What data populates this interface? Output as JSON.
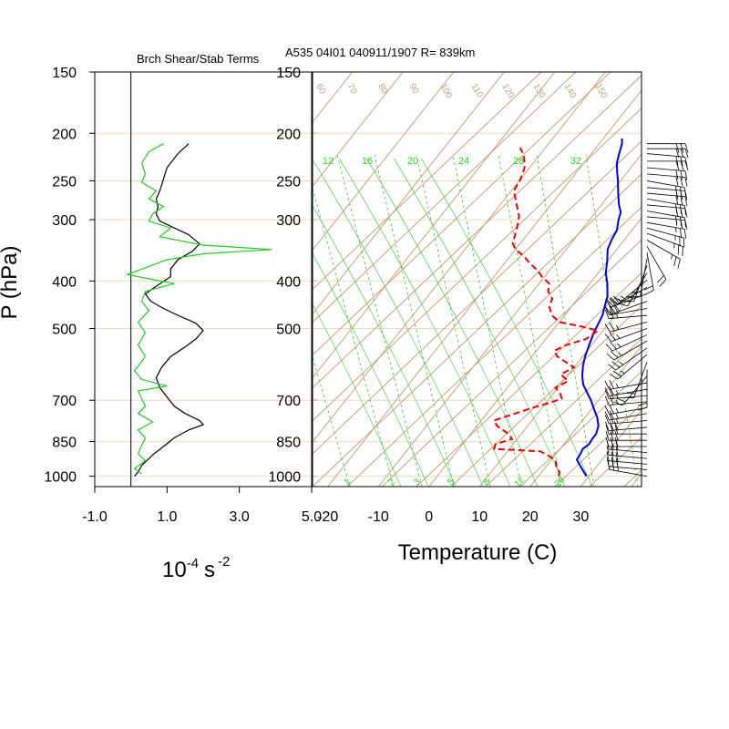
{
  "titles": {
    "left_panel": "Brch Shear/Stab Terms",
    "main": "A535 04I01 040911/1907 R= 839km"
  },
  "colors": {
    "skew_lines": "#c8a27c",
    "mixing_ratio": "#33cc33",
    "temperature": "#0000dd",
    "dewpoint": "#ee0000",
    "shear_term": "#000000",
    "stab_term": "#22cc22"
  },
  "chart_data": [
    {
      "type": "line",
      "panel": "left",
      "title": "Brch Shear/Stab Terms",
      "ylabel": "P (hPa)",
      "xlabel_base": "10",
      "xlabel_exp": "-4",
      "xlabel_unit": "s",
      "xlabel_unit_exp": "-2",
      "y_scale": "log-reversed",
      "ylim": [
        1000,
        150
      ],
      "xlim": [
        -1.0,
        5.0
      ],
      "x_ticks": [
        "-1.0",
        "1.0",
        "3.0",
        "5.0"
      ],
      "x_tick_values": [
        -1.0,
        1.0,
        3.0,
        5.0
      ],
      "p_ticks": [
        150,
        200,
        250,
        300,
        400,
        500,
        700,
        850,
        1000
      ],
      "series": [
        {
          "key": "black",
          "points": [
            [
              1.6,
              210
            ],
            [
              1.3,
              220
            ],
            [
              1.0,
              235
            ],
            [
              0.9,
              248
            ],
            [
              0.8,
              262
            ],
            [
              0.7,
              272
            ],
            [
              0.75,
              282
            ],
            [
              0.7,
              292
            ],
            [
              0.8,
              302
            ],
            [
              1.2,
              312
            ],
            [
              1.6,
              322
            ],
            [
              1.9,
              336
            ],
            [
              1.7,
              348
            ],
            [
              1.3,
              362
            ],
            [
              1.1,
              378
            ],
            [
              1.1,
              392
            ],
            [
              0.7,
              410
            ],
            [
              0.4,
              425
            ],
            [
              0.55,
              440
            ],
            [
              0.9,
              455
            ],
            [
              1.3,
              470
            ],
            [
              1.8,
              488
            ],
            [
              2.0,
              505
            ],
            [
              1.8,
              525
            ],
            [
              1.5,
              545
            ],
            [
              1.1,
              570
            ],
            [
              0.85,
              600
            ],
            [
              0.7,
              630
            ],
            [
              0.8,
              660
            ],
            [
              1.0,
              690
            ],
            [
              1.2,
              720
            ],
            [
              1.5,
              745
            ],
            [
              1.9,
              770
            ],
            [
              2.0,
              785
            ],
            [
              1.6,
              805
            ],
            [
              1.2,
              835
            ],
            [
              0.9,
              870
            ],
            [
              0.6,
              905
            ],
            [
              0.3,
              950
            ],
            [
              0.2,
              980
            ],
            [
              0.1,
              1000
            ]
          ]
        },
        {
          "key": "green",
          "points": [
            [
              0.9,
              210
            ],
            [
              0.5,
              218
            ],
            [
              0.3,
              230
            ],
            [
              0.4,
              242
            ],
            [
              0.3,
              252
            ],
            [
              0.7,
              262
            ],
            [
              0.5,
              272
            ],
            [
              0.9,
              282
            ],
            [
              0.6,
              292
            ],
            [
              0.5,
              302
            ],
            [
              1.1,
              312
            ],
            [
              0.8,
              325
            ],
            [
              2.0,
              338
            ],
            [
              3.9,
              345
            ],
            [
              2.0,
              352
            ],
            [
              1.0,
              362
            ],
            [
              0.4,
              376
            ],
            [
              -0.1,
              388
            ],
            [
              0.5,
              396
            ],
            [
              1.2,
              405
            ],
            [
              0.4,
              420
            ],
            [
              0.3,
              440
            ],
            [
              0.5,
              460
            ],
            [
              0.2,
              485
            ],
            [
              0.4,
              510
            ],
            [
              0.2,
              540
            ],
            [
              0.4,
              570
            ],
            [
              0.1,
              610
            ],
            [
              0.3,
              635
            ],
            [
              1.0,
              655
            ],
            [
              0.2,
              670
            ],
            [
              0.3,
              695
            ],
            [
              0.4,
              720
            ],
            [
              0.2,
              745
            ],
            [
              0.6,
              775
            ],
            [
              0.2,
              805
            ],
            [
              0.4,
              835
            ],
            [
              0.3,
              865
            ],
            [
              0.2,
              900
            ],
            [
              0.4,
              930
            ],
            [
              0.1,
              965
            ],
            [
              0.3,
              990
            ]
          ]
        }
      ]
    },
    {
      "type": "line",
      "panel": "skew-t",
      "title": "A535 04I01 040911/1907 R= 839km",
      "xlabel": "Temperature (C)",
      "y_scale": "log-reversed",
      "ylim": [
        1000,
        150
      ],
      "xlim": [
        -23,
        42
      ],
      "x_ticks": [
        "-20",
        "-10",
        "0",
        "10",
        "20",
        "30"
      ],
      "x_tick_values": [
        -20,
        -10,
        0,
        10,
        20,
        30
      ],
      "p_ticks": [
        150,
        200,
        250,
        300,
        400,
        500,
        700,
        850,
        1000
      ],
      "isotherm_labels": [
        "60",
        "70",
        "80",
        "90",
        "100",
        "110",
        "120",
        "130",
        "140",
        "150"
      ],
      "mixing_ratio_labels": [
        "1",
        "2",
        "3",
        "5",
        "8",
        "12",
        "20"
      ],
      "upper_numbers": [
        "12",
        "16",
        "20",
        "24",
        "28",
        "32"
      ],
      "series": [
        {
          "key": "temperature",
          "points": [
            [
              29.5,
              1000
            ],
            [
              28,
              975
            ],
            [
              26.5,
              950
            ],
            [
              25,
              925
            ],
            [
              24.8,
              900
            ],
            [
              24.5,
              880
            ],
            [
              25,
              860
            ],
            [
              24.8,
              840
            ],
            [
              24.8,
              820
            ],
            [
              24,
              790
            ],
            [
              22.5,
              760
            ],
            [
              20.5,
              730
            ],
            [
              18.5,
              700
            ],
            [
              16.5,
              675
            ],
            [
              14.5,
              650
            ],
            [
              13,
              625
            ],
            [
              11.5,
              595
            ],
            [
              10.5,
              570
            ],
            [
              9.5,
              540
            ],
            [
              8.5,
              510
            ],
            [
              8,
              490
            ],
            [
              7.5,
              470
            ],
            [
              6.5,
              450
            ],
            [
              5.5,
              430
            ],
            [
              3.5,
              405
            ],
            [
              1.5,
              385
            ],
            [
              0,
              365
            ],
            [
              -1.8,
              345
            ],
            [
              -2.5,
              330
            ],
            [
              -3,
              315
            ],
            [
              -4.3,
              300
            ],
            [
              -5,
              290
            ],
            [
              -6.5,
              280
            ],
            [
              -8.5,
              265
            ],
            [
              -10.5,
              250
            ],
            [
              -12,
              240
            ],
            [
              -13.5,
              230
            ],
            [
              -14.5,
              220
            ],
            [
              -15.5,
              210
            ],
            [
              -16.3,
              205
            ]
          ]
        },
        {
          "key": "dewpoint",
          "points": [
            [
              24,
              1000
            ],
            [
              23.5,
              980
            ],
            [
              22,
              955
            ],
            [
              21,
              930
            ],
            [
              18.5,
              905
            ],
            [
              16.5,
              890
            ],
            [
              12,
              885
            ],
            [
              7,
              880
            ],
            [
              6.5,
              860
            ],
            [
              9,
              840
            ],
            [
              7.5,
              820
            ],
            [
              4,
              790
            ],
            [
              2.5,
              770
            ],
            [
              5,
              750
            ],
            [
              7.5,
              730
            ],
            [
              10.5,
              710
            ],
            [
              12.5,
              695
            ],
            [
              11.5,
              680
            ],
            [
              9.5,
              660
            ],
            [
              11,
              640
            ],
            [
              8.5,
              620
            ],
            [
              10,
              600
            ],
            [
              7.5,
              585
            ],
            [
              5,
              570
            ],
            [
              3.5,
              555
            ],
            [
              5,
              540
            ],
            [
              8,
              525
            ],
            [
              9,
              505
            ],
            [
              5,
              495
            ],
            [
              0,
              485
            ],
            [
              -2.5,
              470
            ],
            [
              -4.5,
              450
            ],
            [
              -5,
              435
            ],
            [
              -7,
              420
            ],
            [
              -8,
              405
            ],
            [
              -10.5,
              392
            ],
            [
              -12.5,
              380
            ],
            [
              -15,
              368
            ],
            [
              -17.5,
              355
            ],
            [
              -20,
              345
            ],
            [
              -21.5,
              335
            ],
            [
              -22.5,
              320
            ],
            [
              -23.2,
              310
            ],
            [
              -24.5,
              295
            ],
            [
              -27,
              278
            ],
            [
              -29.5,
              262
            ],
            [
              -30,
              248
            ],
            [
              -31,
              235
            ],
            [
              -33,
              222
            ],
            [
              -35,
              214
            ]
          ]
        }
      ]
    }
  ],
  "wind_profile": {
    "pressures": [
      210,
      215,
      220,
      228,
      235,
      242,
      250,
      258,
      265,
      272,
      280,
      288,
      296,
      304,
      312,
      320,
      330,
      340,
      350,
      360,
      372,
      385,
      398,
      412,
      425,
      440,
      455,
      470,
      485,
      500,
      515,
      530,
      548,
      565,
      585,
      605,
      625,
      645,
      665,
      685,
      705,
      725,
      745,
      770,
      795,
      820,
      845,
      870,
      895,
      920,
      945,
      970,
      1000
    ],
    "directions": [
      90,
      90,
      95,
      90,
      95,
      95,
      100,
      95,
      95,
      100,
      95,
      100,
      95,
      100,
      105,
      110,
      120,
      150,
      170,
      190,
      200,
      210,
      230,
      240,
      250,
      250,
      260,
      265,
      255,
      250,
      245,
      240,
      235,
      230,
      200,
      180,
      220,
      260,
      260,
      265,
      265,
      260,
      260,
      265,
      265,
      270,
      270,
      270,
      275,
      275,
      275,
      275,
      280
    ],
    "speeds": [
      30,
      30,
      30,
      32,
      32,
      32,
      32,
      32,
      32,
      30,
      30,
      30,
      28,
      28,
      26,
      25,
      25,
      22,
      22,
      22,
      25,
      25,
      28,
      28,
      30,
      30,
      30,
      28,
      28,
      28,
      28,
      28,
      25,
      25,
      22,
      20,
      20,
      25,
      25,
      25,
      28,
      28,
      28,
      28,
      30,
      30,
      30,
      30,
      30,
      30,
      30,
      30,
      30
    ]
  }
}
